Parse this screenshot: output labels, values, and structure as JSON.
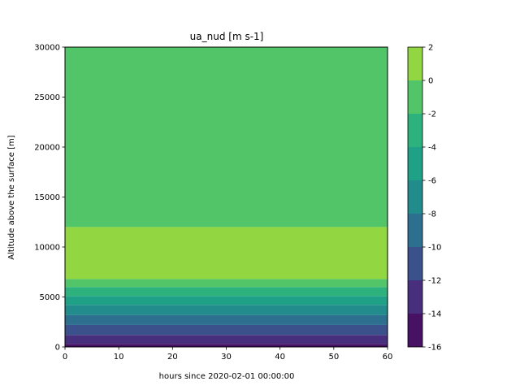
{
  "chart_data": {
    "type": "heatmap",
    "title": "ua_nud [m s-1]",
    "xlabel": "hours since 2020-02-01 00:00:00",
    "ylabel": "Altitude above the surface [m]",
    "xlim": [
      0,
      60
    ],
    "ylim": [
      0,
      30000
    ],
    "xticks": [
      "0",
      "10",
      "20",
      "30",
      "40",
      "50",
      "60"
    ],
    "yticks": [
      "0",
      "5000",
      "10000",
      "15000",
      "20000",
      "25000",
      "30000"
    ],
    "colorbar": {
      "levels": [
        -16,
        -14,
        -12,
        -10,
        -8,
        -6,
        -4,
        -2,
        0,
        2
      ],
      "ticks": [
        "-16",
        "-14",
        "-12",
        "-10",
        "-8",
        "-6",
        "-4",
        "-2",
        "0",
        "2"
      ],
      "colors": [
        "#471164",
        "#472f7d",
        "#3b518b",
        "#2d6f8e",
        "#228c8d",
        "#1fa187",
        "#2db27d",
        "#52c569",
        "#92d741",
        "#dae319"
      ]
    },
    "bands": [
      {
        "z_bottom": 0,
        "z_top": 300,
        "level": "-16 to -14"
      },
      {
        "z_bottom": 300,
        "z_top": 1200,
        "level": "-14 to -12"
      },
      {
        "z_bottom": 1200,
        "z_top": 2200,
        "level": "-12 to -10"
      },
      {
        "z_bottom": 2200,
        "z_top": 3200,
        "level": "-10 to -8"
      },
      {
        "z_bottom": 3200,
        "z_top": 4200,
        "level": "-8 to -6"
      },
      {
        "z_bottom": 4200,
        "z_top": 5100,
        "level": "-6 to -4"
      },
      {
        "z_bottom": 5100,
        "z_top": 6000,
        "level": "-4 to -2"
      },
      {
        "z_bottom": 6000,
        "z_top": 6800,
        "level": "-2 to 0"
      },
      {
        "z_bottom": 6800,
        "z_top": 12000,
        "level": "0 to 2"
      },
      {
        "z_bottom": 12000,
        "z_top": 30000,
        "level": "-2 to 0"
      }
    ],
    "data_x_range": [
      0,
      60
    ]
  }
}
